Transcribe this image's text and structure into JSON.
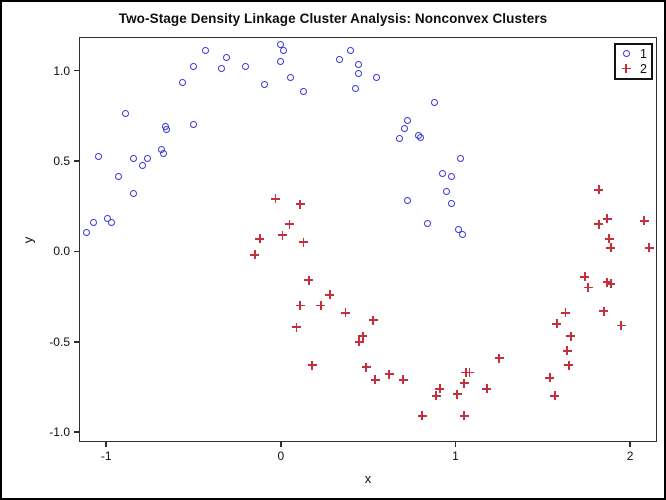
{
  "title": "Two-Stage Density Linkage Cluster Analysis: Nonconvex Clusters",
  "legend": {
    "items": [
      {
        "label": "1",
        "marker": "circle",
        "color": "#3b3bd8"
      },
      {
        "label": "2",
        "marker": "plus",
        "color": "#c5303c"
      }
    ]
  },
  "chart_data": {
    "type": "scatter",
    "title": "Two-Stage Density Linkage Cluster Analysis: Nonconvex Clusters",
    "xlabel": "x",
    "ylabel": "y",
    "xlim": [
      -1.15,
      2.16
    ],
    "ylim": [
      -1.06,
      1.18
    ],
    "grid": false,
    "legend_position": "top-right-inside",
    "x_ticks": [
      {
        "value": -1,
        "label": "-1"
      },
      {
        "value": 0,
        "label": "0"
      },
      {
        "value": 1,
        "label": "1"
      },
      {
        "value": 2,
        "label": "2"
      }
    ],
    "y_ticks": [
      {
        "value": 1.0,
        "label": "1.0"
      },
      {
        "value": 0.5,
        "label": "0.5"
      },
      {
        "value": 0.0,
        "label": "0.0"
      },
      {
        "value": -0.5,
        "label": "-0.5"
      },
      {
        "value": -1.0,
        "label": "-1.0"
      }
    ],
    "series": [
      {
        "name": "1",
        "marker": "circle",
        "color": "#3b3bd8",
        "points": [
          [
            -0.43,
            1.11
          ],
          [
            -0.31,
            1.07
          ],
          [
            -0.5,
            1.02
          ],
          [
            -0.34,
            1.01
          ],
          [
            -0.2,
            1.02
          ],
          [
            -0.09,
            0.92
          ],
          [
            -0.56,
            0.93
          ],
          [
            -0.89,
            0.76
          ],
          [
            -0.66,
            0.69
          ],
          [
            -0.65,
            0.67
          ],
          [
            -0.5,
            0.7
          ],
          [
            -0.68,
            0.56
          ],
          [
            -0.67,
            0.54
          ],
          [
            -1.04,
            0.52
          ],
          [
            -0.84,
            0.51
          ],
          [
            -0.76,
            0.51
          ],
          [
            -0.79,
            0.47
          ],
          [
            -0.93,
            0.41
          ],
          [
            -0.84,
            0.32
          ],
          [
            -1.07,
            0.16
          ],
          [
            -0.99,
            0.18
          ],
          [
            -0.97,
            0.16
          ],
          [
            -1.11,
            0.1
          ],
          [
            0.0,
            1.14
          ],
          [
            0.02,
            1.11
          ],
          [
            0.0,
            1.05
          ],
          [
            0.06,
            0.96
          ],
          [
            0.13,
            0.88
          ],
          [
            0.4,
            1.11
          ],
          [
            0.34,
            1.06
          ],
          [
            0.45,
            1.03
          ],
          [
            0.45,
            0.98
          ],
          [
            0.55,
            0.96
          ],
          [
            0.43,
            0.9
          ],
          [
            0.88,
            0.82
          ],
          [
            0.73,
            0.72
          ],
          [
            0.71,
            0.68
          ],
          [
            0.79,
            0.64
          ],
          [
            0.8,
            0.63
          ],
          [
            0.68,
            0.62
          ],
          [
            1.03,
            0.51
          ],
          [
            0.93,
            0.43
          ],
          [
            0.98,
            0.41
          ],
          [
            0.95,
            0.33
          ],
          [
            0.98,
            0.26
          ],
          [
            0.73,
            0.28
          ],
          [
            0.84,
            0.15
          ],
          [
            1.02,
            0.12
          ],
          [
            1.04,
            0.09
          ]
        ]
      },
      {
        "name": "2",
        "marker": "plus",
        "color": "#c5303c",
        "points": [
          [
            -0.03,
            0.29
          ],
          [
            0.11,
            0.26
          ],
          [
            0.05,
            0.15
          ],
          [
            0.01,
            0.09
          ],
          [
            -0.12,
            0.07
          ],
          [
            0.13,
            0.05
          ],
          [
            -0.15,
            -0.02
          ],
          [
            0.16,
            -0.16
          ],
          [
            0.28,
            -0.24
          ],
          [
            0.11,
            -0.3
          ],
          [
            0.23,
            -0.3
          ],
          [
            0.37,
            -0.34
          ],
          [
            0.53,
            -0.38
          ],
          [
            0.09,
            -0.42
          ],
          [
            0.47,
            -0.47
          ],
          [
            0.45,
            -0.5
          ],
          [
            0.18,
            -0.63
          ],
          [
            0.49,
            -0.64
          ],
          [
            0.54,
            -0.71
          ],
          [
            0.62,
            -0.68
          ],
          [
            0.7,
            -0.71
          ],
          [
            0.91,
            -0.76
          ],
          [
            0.89,
            -0.8
          ],
          [
            1.01,
            -0.79
          ],
          [
            1.06,
            -0.67
          ],
          [
            1.05,
            -0.73
          ],
          [
            0.81,
            -0.91
          ],
          [
            1.05,
            -0.91
          ],
          [
            1.82,
            0.34
          ],
          [
            1.87,
            0.18
          ],
          [
            1.82,
            0.15
          ],
          [
            2.08,
            0.17
          ],
          [
            1.88,
            0.07
          ],
          [
            1.89,
            0.02
          ],
          [
            2.11,
            0.02
          ],
          [
            1.74,
            -0.14
          ],
          [
            1.76,
            -0.2
          ],
          [
            1.87,
            -0.17
          ],
          [
            1.89,
            -0.18
          ],
          [
            1.63,
            -0.34
          ],
          [
            1.85,
            -0.33
          ],
          [
            1.58,
            -0.4
          ],
          [
            1.95,
            -0.41
          ],
          [
            1.66,
            -0.47
          ],
          [
            1.64,
            -0.55
          ],
          [
            1.25,
            -0.59
          ],
          [
            1.65,
            -0.63
          ],
          [
            1.08,
            -0.67
          ],
          [
            1.54,
            -0.7
          ],
          [
            1.18,
            -0.76
          ],
          [
            1.57,
            -0.8
          ]
        ]
      }
    ]
  }
}
